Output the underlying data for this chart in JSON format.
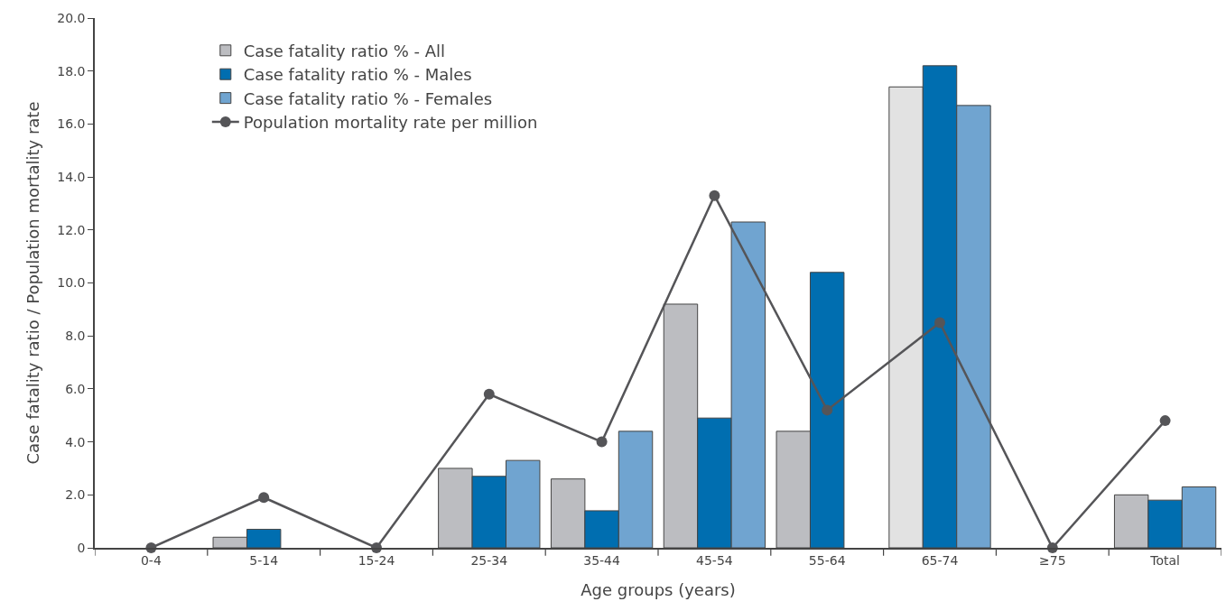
{
  "chart_data": {
    "type": "bar",
    "xlabel": "Age groups (years)",
    "ylabel": "Case fatality ratio / Population mortality rate",
    "categories": [
      "0-4",
      "5-14",
      "15-24",
      "25-34",
      "35-44",
      "45-54",
      "55-64",
      "65-74",
      "≥75",
      "Total"
    ],
    "series": [
      {
        "name": "Case fatality ratio % - All",
        "color": "#bcbdc1",
        "colors": [
          "#bcbdc1",
          "#bcbdc1",
          "#bcbdc1",
          "#bcbdc1",
          "#bcbdc1",
          "#bcbdc1",
          "#bcbdc1",
          "#e2e2e2",
          "#bcbdc1",
          "#bcbdc1"
        ],
        "values": [
          null,
          0.4,
          null,
          3.0,
          2.6,
          9.2,
          4.4,
          17.4,
          null,
          2.0
        ]
      },
      {
        "name": "Case fatality ratio % - Males",
        "color": "#006eb0",
        "values": [
          null,
          0.7,
          null,
          2.7,
          1.4,
          4.9,
          10.4,
          18.2,
          null,
          1.8
        ]
      },
      {
        "name": "Case fatality ratio % - Females",
        "color": "#70a4d0",
        "values": [
          null,
          null,
          null,
          3.3,
          4.4,
          12.3,
          null,
          16.7,
          null,
          2.3
        ]
      },
      {
        "name": "Population mortality rate per million",
        "type": "line",
        "color": "#555558",
        "values": [
          0,
          1.9,
          0,
          5.8,
          4.0,
          13.3,
          5.2,
          8.5,
          0,
          4.8
        ]
      }
    ],
    "ylim": [
      0,
      20
    ],
    "yticks": [
      0,
      {
        "value": 2,
        "label": "2.0"
      },
      {
        "value": 4,
        "label": "4.0"
      },
      {
        "value": 6,
        "label": "6.0"
      },
      {
        "value": 8,
        "label": "8.0"
      },
      {
        "value": 10,
        "label": "10.0"
      },
      {
        "value": 12,
        "label": "12.0"
      },
      {
        "value": 14,
        "label": "14.0"
      },
      {
        "value": 16,
        "label": "16.0"
      },
      {
        "value": 18,
        "label": "18.0"
      },
      {
        "value": 20,
        "label": "20.0"
      }
    ],
    "grid": false,
    "legend": "top left",
    "marker": "circle",
    "line_style": "solid"
  }
}
